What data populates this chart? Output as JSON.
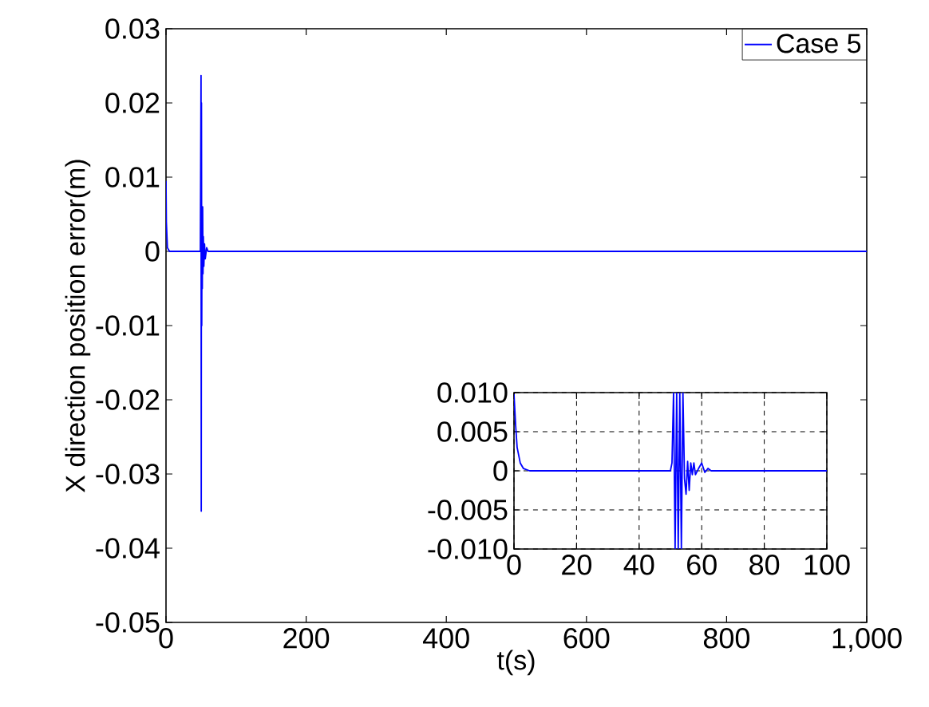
{
  "chart_data": [
    {
      "type": "line",
      "xlabel": "t(s)",
      "ylabel": "X direction position error(m)",
      "xlim": [
        0,
        1000
      ],
      "ylim": [
        -0.05,
        0.03
      ],
      "xticks": [
        0,
        200,
        400,
        600,
        800,
        {
          "value": 1000,
          "label": "1,000"
        }
      ],
      "yticks": [
        -0.05,
        -0.04,
        -0.03,
        -0.02,
        -0.01,
        0,
        0.01,
        0.02,
        0.03
      ],
      "legend": "top right",
      "grid": false,
      "series": [
        {
          "name": "Case 5",
          "color": "#0000ff",
          "x": [
            0,
            0.5,
            2,
            5,
            49,
            50,
            50.3,
            50.6,
            51,
            51.4,
            51.8,
            52.3,
            52.8,
            53.3,
            54,
            55,
            56,
            58,
            60,
            65,
            1000
          ],
          "values": [
            0.0095,
            0.004,
            0.0005,
            0,
            0,
            0.0237,
            -0.035,
            0.02,
            -0.01,
            0.006,
            -0.005,
            0.006,
            -0.003,
            0.002,
            -0.002,
            0.001,
            -0.001,
            0.0005,
            0,
            0,
            0
          ]
        }
      ]
    },
    {
      "type": "line",
      "xlim": [
        0,
        100
      ],
      "ylim": [
        -0.01,
        0.01
      ],
      "xticks": [
        0,
        20,
        40,
        60,
        80,
        100
      ],
      "yticks": [
        {
          "value": -0.01,
          "label": "-0.010"
        },
        {
          "value": -0.005,
          "label": "-0.005"
        },
        0,
        {
          "value": 0.005,
          "label": "0.005"
        },
        {
          "value": 0.01,
          "label": "0.010"
        }
      ],
      "grid": true,
      "series": [
        {
          "color": "#0000ff",
          "x": [
            0,
            0.5,
            1,
            2,
            3,
            5,
            10,
            20,
            30,
            40,
            50,
            50.5,
            51,
            51.5,
            52,
            52.5,
            53,
            53.5,
            54,
            54.5,
            55,
            55.5,
            56,
            56.5,
            57,
            57.5,
            58,
            59,
            60,
            61,
            62,
            63,
            65,
            70,
            80,
            90,
            100
          ],
          "values": [
            0.0098,
            0.006,
            0.003,
            0.001,
            0.0003,
            0,
            0,
            0,
            0,
            0,
            0,
            0.001,
            0.01,
            -0.01,
            0.01,
            -0.01,
            0.01,
            -0.01,
            0.01,
            -0.001,
            -0.003,
            0.0012,
            -0.0025,
            0.001,
            -0.0005,
            0.001,
            -0.0005,
            0.0003,
            0.001,
            -0.0002,
            0.0003,
            0,
            0,
            0,
            0,
            0,
            0
          ]
        }
      ]
    }
  ]
}
